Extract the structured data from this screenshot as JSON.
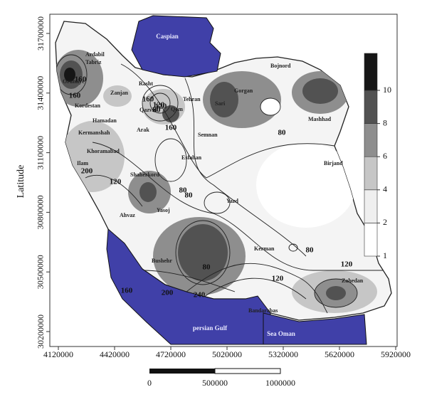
{
  "axes": {
    "y_label": "Latitude",
    "xticks": [
      4120000,
      4420000,
      4720000,
      5020000,
      5320000,
      5620000,
      5920000
    ],
    "yticks": [
      30200000,
      30500000,
      30800000,
      31100000,
      31400000,
      31700000
    ]
  },
  "colorbar": {
    "levels": [
      1,
      2,
      4,
      6,
      8,
      10
    ],
    "colors": [
      "#ffffff",
      "#efefef",
      "#c6c6c6",
      "#8e8e8e",
      "#525252",
      "#161616"
    ]
  },
  "scale_bar": {
    "labels": [
      0,
      500000,
      1000000
    ]
  },
  "seas": [
    "Caspian",
    "persian Gulf",
    "Sea Oman"
  ],
  "cities": [
    "Ardabil",
    "Tabriz",
    "Orumiye",
    "Zanjan",
    "Rasht",
    "Kordestan",
    "Qazvin",
    "Sari",
    "Gorgan",
    "Bojnord",
    "Hamadan",
    "Tehran",
    "Qom",
    "Semnan",
    "Mashhad",
    "Kermanshah",
    "Arak",
    "Khoramabad",
    "Esfahan",
    "Ilam",
    "Birjand",
    "Shaherkord",
    "Yazd",
    "Ahvaz",
    "Yasoj",
    "Kerman",
    "Bushehr",
    "Zahedan",
    "Bandarabas"
  ],
  "contour_labels": [
    "160",
    "160",
    "160",
    "120",
    "80",
    "160",
    "120",
    "200",
    "120",
    "80",
    "80",
    "80",
    "80",
    "80",
    "160",
    "200",
    "240",
    "120",
    "120"
  ]
}
